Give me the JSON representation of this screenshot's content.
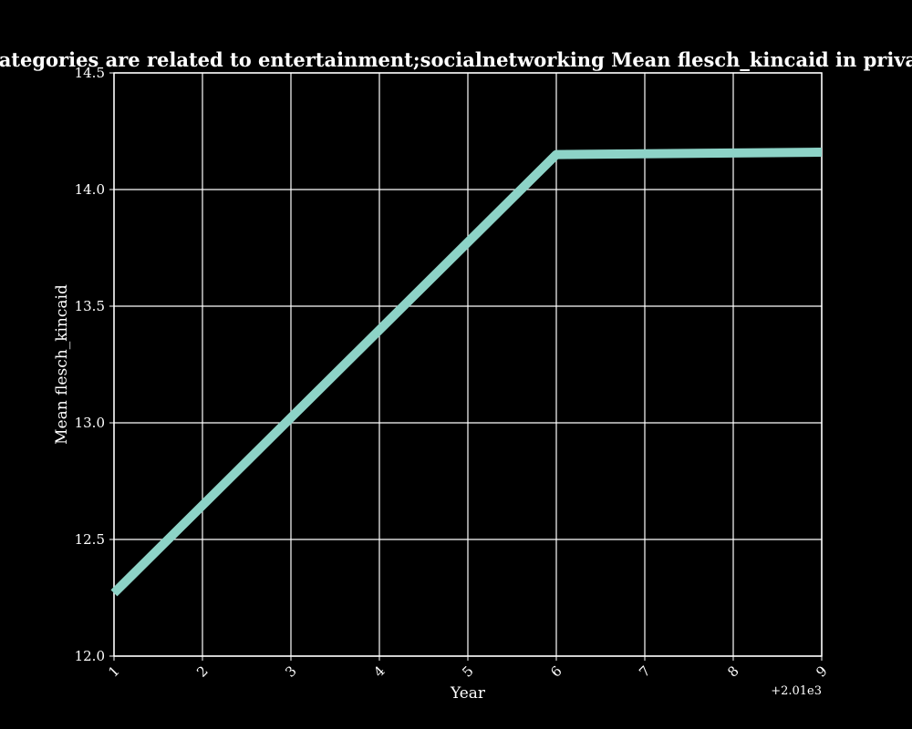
{
  "chart_data": {
    "type": "line",
    "title": "Line plot when categories are related to entertainment;socialnetworking Mean flesch_kincaid in privacy policies by Year",
    "xlabel": "Year",
    "ylabel": "Mean flesch_kincaid",
    "x_offset_label": "+2.01e3",
    "x": [
      1,
      6,
      9
    ],
    "series": [
      {
        "values": [
          12.27,
          14.15,
          14.16
        ]
      }
    ],
    "xlim": [
      1,
      9
    ],
    "ylim": [
      12.0,
      14.5
    ],
    "xticks": [
      1,
      2,
      3,
      4,
      5,
      6,
      7,
      8,
      9
    ],
    "xtick_labels": [
      "1",
      "2",
      "3",
      "4",
      "5",
      "6",
      "7",
      "8",
      "9"
    ],
    "yticks": [
      12.0,
      12.5,
      13.0,
      13.5,
      14.0,
      14.5
    ],
    "ytick_labels": [
      "12.0",
      "12.5",
      "13.0",
      "13.5",
      "14.0",
      "14.5"
    ],
    "grid": true,
    "line_color": "#8dd3c7",
    "background_color": "#000000",
    "text_color": "#ffffff"
  }
}
